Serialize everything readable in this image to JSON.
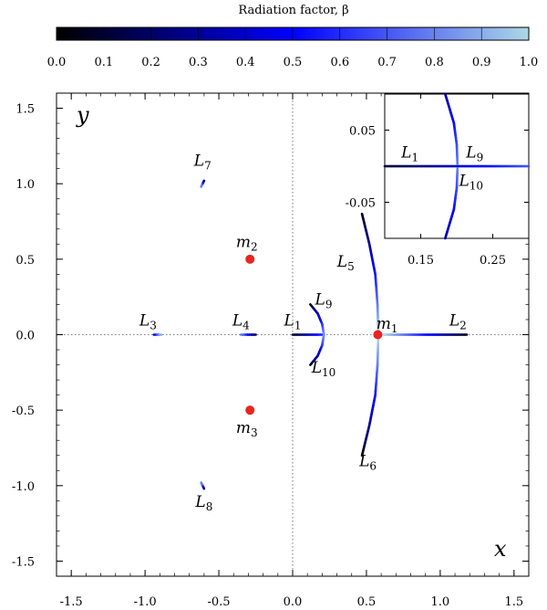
{
  "colorbar": {
    "title": "Radiation factor, β",
    "range": [
      0.0,
      1.0
    ],
    "ticks": [
      "0.0",
      "0.1",
      "0.2",
      "0.3",
      "0.4",
      "0.5",
      "0.6",
      "0.7",
      "0.8",
      "0.9",
      "1.0"
    ],
    "stops": [
      {
        "v": 0.0,
        "color": "#000000"
      },
      {
        "v": 0.5,
        "color": "#0000ff"
      },
      {
        "v": 1.0,
        "color": "#add8e6"
      }
    ]
  },
  "chart_data": {
    "type": "scatter",
    "xlabel": "x",
    "ylabel": "y",
    "xlim": [
      -1.6,
      1.6
    ],
    "ylim": [
      -1.6,
      1.6
    ],
    "xticks": [
      -1.5,
      -1.0,
      -0.5,
      0.0,
      0.5,
      1.0,
      1.5
    ],
    "yticks": [
      -1.5,
      -1.0,
      -0.5,
      0.0,
      0.5,
      1.0,
      1.5
    ],
    "xtick_labels": [
      "-1.5",
      "-1.0",
      "-0.5",
      "0.0",
      "0.5",
      "1.0",
      "1.5"
    ],
    "ytick_labels": [
      "-1.5",
      "-1.0",
      "-0.5",
      "0.0",
      "0.5",
      "1.0",
      "1.5"
    ],
    "reference_lines": [
      "x = 0 (dotted)",
      "y = 0 (dotted)"
    ],
    "primaries": [
      {
        "label": "m",
        "sub": "1",
        "x": 0.577,
        "y": 0.0,
        "color": "#e8251e"
      },
      {
        "label": "m",
        "sub": "2",
        "x": -0.289,
        "y": 0.5,
        "color": "#e8251e"
      },
      {
        "label": "m",
        "sub": "3",
        "x": -0.289,
        "y": -0.5,
        "color": "#e8251e"
      }
    ],
    "curves": [
      {
        "label": "L",
        "sub": "1",
        "beta_start": 0.05,
        "beta_end": 0.6,
        "points": [
          [
            0.0,
            0.0
          ],
          [
            0.2,
            0.0
          ]
        ]
      },
      {
        "label": "L",
        "sub": "2",
        "beta_start": 0.05,
        "beta_end": 1.0,
        "points": [
          [
            1.18,
            0.0
          ],
          [
            0.61,
            0.0
          ]
        ]
      },
      {
        "label": "L",
        "sub": "3",
        "beta_start": 0.4,
        "beta_end": 0.95,
        "points": [
          [
            -0.94,
            0.0
          ],
          [
            -0.89,
            0.0
          ]
        ]
      },
      {
        "label": "L",
        "sub": "4",
        "beta_start": 0.1,
        "beta_end": 0.8,
        "points": [
          [
            -0.25,
            0.0
          ],
          [
            -0.35,
            0.0
          ]
        ]
      },
      {
        "label": "L",
        "sub": "5",
        "beta_start": 0.05,
        "beta_end": 1.0,
        "points": [
          [
            0.47,
            0.8
          ],
          [
            0.52,
            0.6
          ],
          [
            0.56,
            0.4
          ],
          [
            0.575,
            0.2
          ],
          [
            0.58,
            0.02
          ]
        ]
      },
      {
        "label": "L",
        "sub": "6",
        "beta_start": 0.05,
        "beta_end": 1.0,
        "points": [
          [
            0.47,
            -0.8
          ],
          [
            0.52,
            -0.6
          ],
          [
            0.56,
            -0.4
          ],
          [
            0.575,
            -0.2
          ],
          [
            0.58,
            -0.02
          ]
        ]
      },
      {
        "label": "L",
        "sub": "7",
        "beta_start": 0.1,
        "beta_end": 0.9,
        "points": [
          [
            -0.6,
            1.02
          ],
          [
            -0.62,
            0.98
          ]
        ]
      },
      {
        "label": "L",
        "sub": "8",
        "beta_start": 0.1,
        "beta_end": 0.9,
        "points": [
          [
            -0.6,
            -1.02
          ],
          [
            -0.62,
            -0.98
          ]
        ]
      },
      {
        "label": "L",
        "sub": "9",
        "beta_start": 0.05,
        "beta_end": 0.85,
        "points": [
          [
            0.12,
            0.2
          ],
          [
            0.17,
            0.14
          ],
          [
            0.2,
            0.07
          ],
          [
            0.212,
            0.0
          ]
        ]
      },
      {
        "label": "L",
        "sub": "10",
        "beta_start": 0.05,
        "beta_end": 0.85,
        "points": [
          [
            0.12,
            -0.2
          ],
          [
            0.17,
            -0.14
          ],
          [
            0.2,
            -0.07
          ],
          [
            0.212,
            0.0
          ]
        ]
      }
    ],
    "inset": {
      "xlim": [
        0.1,
        0.3
      ],
      "ylim": [
        -0.1,
        0.1
      ],
      "xtick_labels": [
        "0.15",
        "0.25"
      ],
      "xticks": [
        0.15,
        0.25
      ],
      "ytick_labels": [
        "0.05",
        "-0.05"
      ],
      "yticks": [
        0.05,
        -0.05
      ],
      "curves": [
        {
          "label": "L",
          "sub": "1",
          "beta_start": 0.1,
          "beta_end": 0.7,
          "points": [
            [
              0.1,
              0.0
            ],
            [
              0.3,
              0.0
            ]
          ]
        },
        {
          "label": "L",
          "sub": "9",
          "beta_start": 0.3,
          "beta_end": 0.8,
          "points": [
            [
              0.184,
              0.1
            ],
            [
              0.196,
              0.06
            ],
            [
              0.2,
              0.03
            ],
            [
              0.201,
              0.003
            ]
          ]
        },
        {
          "label": "L",
          "sub": "10",
          "beta_start": 0.3,
          "beta_end": 0.8,
          "points": [
            [
              0.184,
              -0.1
            ],
            [
              0.196,
              -0.06
            ],
            [
              0.2,
              -0.03
            ],
            [
              0.201,
              -0.003
            ]
          ]
        }
      ],
      "labels": [
        {
          "label": "L",
          "sub": "1",
          "x": 0.135,
          "y": 0.012
        },
        {
          "label": "L",
          "sub": "9",
          "x": 0.225,
          "y": 0.012
        },
        {
          "label": "L",
          "sub": "10",
          "x": 0.22,
          "y": -0.027
        }
      ]
    },
    "point_labels": [
      {
        "label": "L",
        "sub": "1",
        "x": 0.0,
        "y": 0.06
      },
      {
        "label": "L",
        "sub": "2",
        "x": 1.12,
        "y": 0.06
      },
      {
        "label": "L",
        "sub": "3",
        "x": -0.98,
        "y": 0.06
      },
      {
        "label": "L",
        "sub": "4",
        "x": -0.35,
        "y": 0.06
      },
      {
        "label": "L",
        "sub": "5",
        "x": 0.36,
        "y": 0.45
      },
      {
        "label": "L",
        "sub": "6",
        "x": 0.51,
        "y": -0.87
      },
      {
        "label": "L",
        "sub": "7",
        "x": -0.61,
        "y": 1.12
      },
      {
        "label": "L",
        "sub": "8",
        "x": -0.6,
        "y": -1.14
      },
      {
        "label": "L",
        "sub": "9",
        "x": 0.21,
        "y": 0.2
      },
      {
        "label": "L",
        "sub": "10",
        "x": 0.21,
        "y": -0.25
      },
      {
        "label": "m",
        "sub": "1",
        "x": 0.64,
        "y": 0.04
      },
      {
        "label": "m",
        "sub": "2",
        "x": -0.31,
        "y": 0.58
      },
      {
        "label": "m",
        "sub": "3",
        "x": -0.31,
        "y": -0.65
      }
    ]
  }
}
